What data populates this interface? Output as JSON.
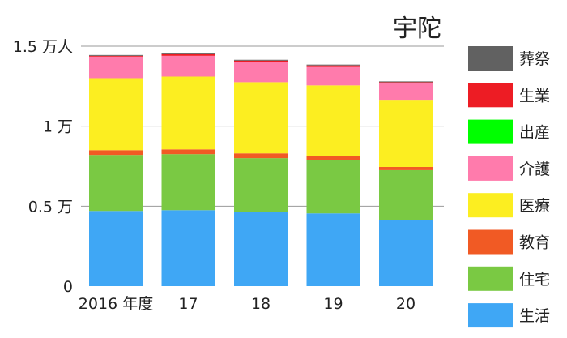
{
  "chart_data": {
    "type": "bar",
    "stacked": true,
    "title": "宇陀",
    "categories": [
      "2016 年度",
      "17",
      "18",
      "19",
      "20"
    ],
    "ylim": [
      0,
      1.5
    ],
    "yticks": [
      {
        "value": 0,
        "label": "0"
      },
      {
        "value": 0.5,
        "label": "0.5 万"
      },
      {
        "value": 1,
        "label": "1 万"
      },
      {
        "value": 1.5,
        "label": "1.5 万人"
      }
    ],
    "grid": true,
    "legend_position": "right",
    "series": [
      {
        "name": "生活",
        "color": "#3fa7f5",
        "values": [
          0.47,
          0.475,
          0.465,
          0.455,
          0.415
        ]
      },
      {
        "name": "住宅",
        "color": "#7ac943",
        "values": [
          0.35,
          0.35,
          0.335,
          0.335,
          0.31
        ]
      },
      {
        "name": "教育",
        "color": "#f15a24",
        "values": [
          0.03,
          0.03,
          0.03,
          0.025,
          0.02
        ]
      },
      {
        "name": "医療",
        "color": "#fcee21",
        "values": [
          0.45,
          0.455,
          0.445,
          0.44,
          0.42
        ]
      },
      {
        "name": "介護",
        "color": "#ff7bac",
        "values": [
          0.135,
          0.13,
          0.125,
          0.115,
          0.105
        ]
      },
      {
        "name": "出産",
        "color": "#00ff00",
        "values": [
          0,
          0,
          0,
          0,
          0
        ]
      },
      {
        "name": "生業",
        "color": "#ed1c24",
        "values": [
          0.005,
          0.01,
          0.01,
          0.01,
          0.005
        ]
      },
      {
        "name": "葬祭",
        "color": "#616161",
        "values": [
          0.005,
          0.005,
          0.005,
          0.005,
          0.005
        ]
      }
    ]
  }
}
